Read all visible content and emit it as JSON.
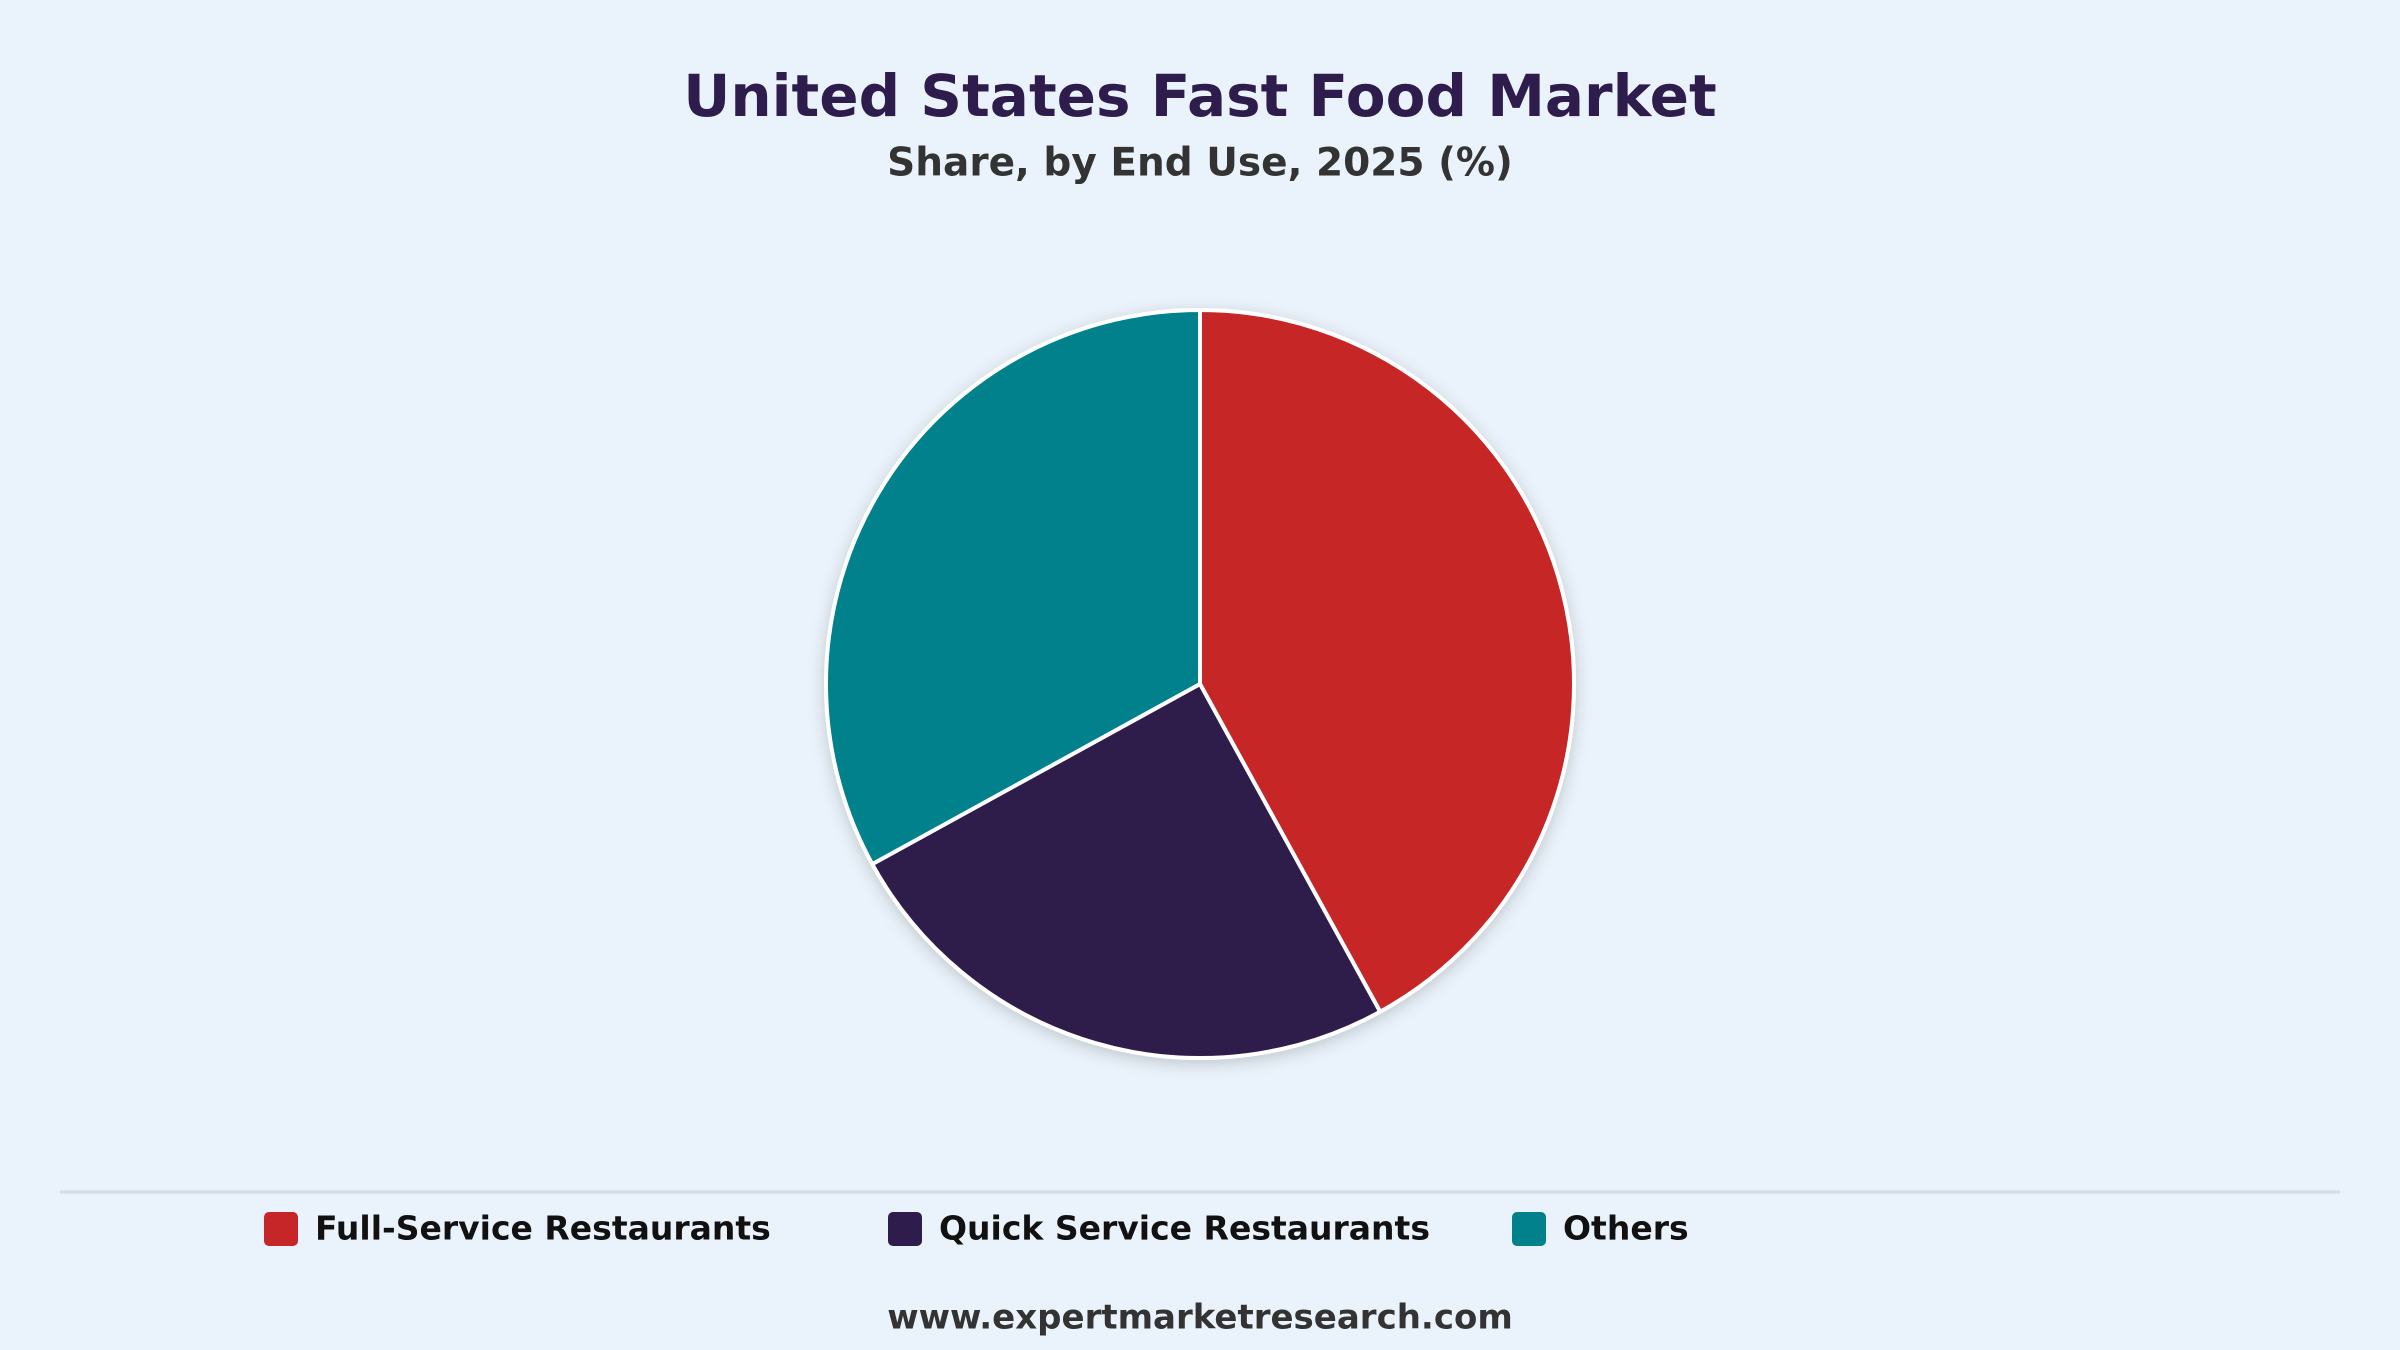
{
  "chart_data": {
    "type": "pie",
    "title": "United States Fast Food Market",
    "subtitle": "Share, by End Use, 2025 (%)",
    "categories": [
      "Full-Service Restaurants",
      "Quick Service Restaurants",
      "Others"
    ],
    "values": [
      42,
      25,
      33
    ],
    "colors": [
      "#c62628",
      "#2e1c4c",
      "#00818c"
    ],
    "source": "www.expertmarketresearch.com"
  }
}
